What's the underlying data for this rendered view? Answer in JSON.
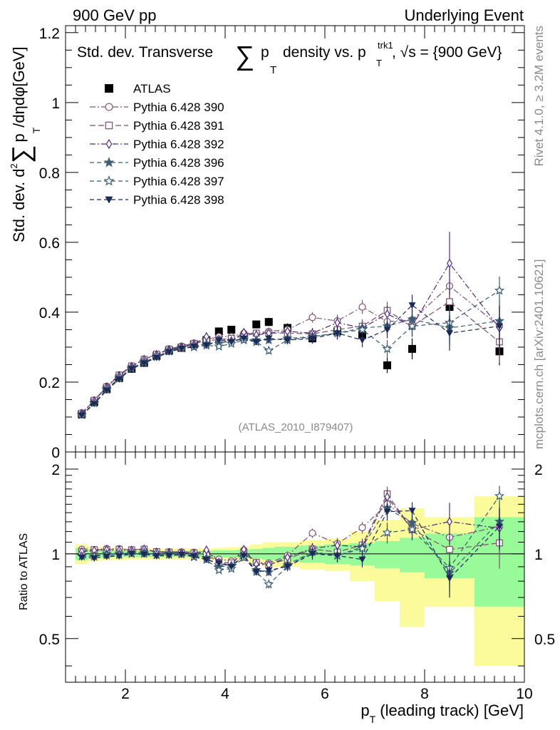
{
  "header": {
    "left": "900 GeV pp",
    "right": "Underlying Event"
  },
  "side_labels": {
    "rivet": "Rivet 4.1.0, ≥ 3.2M events",
    "mcplots": "mcplots.cern.ch [arXiv:2401.10621]"
  },
  "chart_data": [
    {
      "type": "scatter",
      "panel": "main",
      "title_parts": {
        "a": "Std. dev. Transverse",
        "sum": "∑",
        "p": "p",
        "T": "T",
        "b": "density vs. p",
        "trk1": "trk1",
        "c": ", √s = {900 GeV}"
      },
      "ylabel_parts": {
        "a": "Std. dev. d",
        "sup": "2",
        "sum": "∑",
        "b": "p",
        "T": "T",
        "c": "/dηdφ[GeV]"
      },
      "xlabel_parts": {
        "a": "p",
        "T": "T",
        "b": " (leading track) [GeV]"
      },
      "watermark": "(ATLAS_2010_I879407)",
      "xlim": [
        0.8,
        10.0
      ],
      "ylim": [
        0,
        1.22
      ],
      "yticks": [
        0,
        0.2,
        0.4,
        0.6,
        0.8,
        1,
        1.2
      ],
      "ytick_labels": [
        "0",
        "0.2",
        "0.4",
        "0.6",
        "0.8",
        "1",
        "1.2"
      ],
      "xticks": [
        2,
        4,
        6,
        8,
        10
      ],
      "xtick_labels": [
        "2",
        "4",
        "6",
        "8",
        "10"
      ],
      "x": [
        1.125,
        1.375,
        1.625,
        1.875,
        2.125,
        2.375,
        2.625,
        2.875,
        3.125,
        3.375,
        3.625,
        3.875,
        4.125,
        4.375,
        4.625,
        4.875,
        5.25,
        5.75,
        6.25,
        6.75,
        7.25,
        7.75,
        8.5,
        9.5
      ],
      "series": [
        {
          "name": "ATLAS",
          "marker": "square-filled",
          "color": "#000000",
          "values": [
            0.108,
            0.143,
            0.18,
            0.212,
            0.238,
            0.255,
            0.275,
            0.29,
            0.298,
            0.308,
            0.32,
            0.345,
            0.35,
            0.33,
            0.365,
            0.372,
            0.355,
            0.325,
            0.345,
            0.335,
            0.248,
            0.295,
            0.415,
            0.288
          ],
          "errors": [
            0.003,
            0.003,
            0.004,
            0.004,
            0.004,
            0.004,
            0.004,
            0.005,
            0.005,
            0.005,
            0.006,
            0.007,
            0.008,
            0.009,
            0.01,
            0.012,
            0.013,
            0.015,
            0.018,
            0.02,
            0.022,
            0.03,
            0.035,
            0.04
          ]
        },
        {
          "name": "Pythia 6.428 390",
          "marker": "circle-open",
          "color": "#7e5475",
          "values": [
            0.112,
            0.148,
            0.188,
            0.221,
            0.246,
            0.265,
            0.279,
            0.295,
            0.303,
            0.312,
            0.322,
            0.33,
            0.33,
            0.34,
            0.34,
            0.345,
            0.35,
            0.385,
            0.375,
            0.415,
            0.373,
            0.378,
            0.475,
            0.36
          ],
          "errors": [
            0.002,
            0.002,
            0.002,
            0.003,
            0.003,
            0.003,
            0.003,
            0.004,
            0.004,
            0.005,
            0.005,
            0.006,
            0.007,
            0.008,
            0.009,
            0.01,
            0.012,
            0.015,
            0.018,
            0.02,
            0.025,
            0.03,
            0.05,
            0.06
          ]
        },
        {
          "name": "Pythia 6.428 391",
          "marker": "square-open",
          "color": "#7e5069",
          "values": [
            0.11,
            0.148,
            0.186,
            0.22,
            0.246,
            0.265,
            0.28,
            0.294,
            0.3,
            0.31,
            0.318,
            0.322,
            0.325,
            0.332,
            0.34,
            0.34,
            0.34,
            0.338,
            0.35,
            0.36,
            0.405,
            0.36,
            0.43,
            0.315
          ],
          "errors": [
            0.002,
            0.002,
            0.002,
            0.003,
            0.003,
            0.003,
            0.003,
            0.004,
            0.004,
            0.005,
            0.005,
            0.006,
            0.007,
            0.008,
            0.009,
            0.01,
            0.012,
            0.015,
            0.018,
            0.02,
            0.025,
            0.03,
            0.05,
            0.06
          ]
        },
        {
          "name": "Pythia 6.428 392",
          "marker": "diamond-open",
          "color": "#4f2c7b",
          "values": [
            0.11,
            0.147,
            0.186,
            0.218,
            0.245,
            0.265,
            0.279,
            0.293,
            0.3,
            0.308,
            0.33,
            0.322,
            0.318,
            0.342,
            0.335,
            0.34,
            0.345,
            0.34,
            0.37,
            0.355,
            0.395,
            0.36,
            0.54,
            0.355
          ],
          "errors": [
            0.002,
            0.002,
            0.002,
            0.003,
            0.003,
            0.003,
            0.003,
            0.004,
            0.004,
            0.005,
            0.005,
            0.006,
            0.007,
            0.008,
            0.009,
            0.01,
            0.012,
            0.015,
            0.018,
            0.02,
            0.025,
            0.03,
            0.09,
            0.06
          ]
        },
        {
          "name": "Pythia 6.428 396",
          "marker": "star-filled",
          "color": "#3f5f77",
          "values": [
            0.106,
            0.14,
            0.18,
            0.212,
            0.24,
            0.258,
            0.272,
            0.29,
            0.298,
            0.302,
            0.31,
            0.31,
            0.318,
            0.325,
            0.32,
            0.32,
            0.325,
            0.33,
            0.34,
            0.355,
            0.36,
            0.38,
            0.355,
            0.375
          ],
          "errors": [
            0.002,
            0.002,
            0.002,
            0.003,
            0.003,
            0.003,
            0.003,
            0.004,
            0.004,
            0.005,
            0.005,
            0.006,
            0.007,
            0.008,
            0.009,
            0.01,
            0.012,
            0.015,
            0.018,
            0.02,
            0.025,
            0.03,
            0.05,
            0.06
          ]
        },
        {
          "name": "Pythia 6.428 397",
          "marker": "star-open",
          "color": "#375a70",
          "values": [
            0.106,
            0.14,
            0.178,
            0.21,
            0.238,
            0.255,
            0.273,
            0.288,
            0.297,
            0.3,
            0.305,
            0.302,
            0.31,
            0.32,
            0.315,
            0.29,
            0.32,
            0.33,
            0.34,
            0.35,
            0.295,
            0.36,
            0.37,
            0.462
          ],
          "errors": [
            0.002,
            0.002,
            0.002,
            0.003,
            0.003,
            0.003,
            0.003,
            0.004,
            0.004,
            0.005,
            0.005,
            0.006,
            0.007,
            0.008,
            0.009,
            0.01,
            0.012,
            0.015,
            0.018,
            0.02,
            0.025,
            0.03,
            0.05,
            0.04
          ]
        },
        {
          "name": "Pythia 6.428 398",
          "marker": "triangle-down-filled",
          "color": "#1c2b55",
          "values": [
            0.105,
            0.138,
            0.176,
            0.208,
            0.238,
            0.254,
            0.27,
            0.286,
            0.296,
            0.302,
            0.305,
            0.32,
            0.315,
            0.325,
            0.315,
            0.325,
            0.32,
            0.325,
            0.34,
            0.32,
            0.35,
            0.42,
            0.34,
            0.36
          ],
          "errors": [
            0.002,
            0.002,
            0.002,
            0.003,
            0.003,
            0.003,
            0.003,
            0.004,
            0.004,
            0.005,
            0.005,
            0.006,
            0.007,
            0.008,
            0.009,
            0.01,
            0.012,
            0.015,
            0.018,
            0.02,
            0.025,
            0.03,
            0.05,
            0.06
          ]
        }
      ]
    },
    {
      "type": "scatter",
      "panel": "ratio",
      "ylabel": "Ratio to ATLAS",
      "xlim": [
        0.8,
        10.0
      ],
      "ylim": [
        0.35,
        2.3
      ],
      "ytick_labels": [
        "0.5",
        "1",
        "2"
      ],
      "yticks": [
        0.5,
        1,
        2
      ],
      "bin_edges": [
        1.0,
        1.25,
        1.5,
        1.75,
        2.0,
        2.25,
        2.5,
        2.75,
        3.0,
        3.25,
        3.5,
        3.75,
        4.0,
        4.25,
        4.5,
        4.75,
        5.0,
        5.5,
        6.0,
        6.5,
        7.0,
        7.5,
        8.0,
        9.0,
        10.0
      ],
      "band_stat": [
        0.05,
        0.03,
        0.03,
        0.025,
        0.025,
        0.025,
        0.025,
        0.025,
        0.025,
        0.025,
        0.025,
        0.03,
        0.03,
        0.035,
        0.04,
        0.05,
        0.06,
        0.07,
        0.08,
        0.09,
        0.11,
        0.14,
        0.18,
        0.35
      ],
      "band_total": [
        0.08,
        0.06,
        0.05,
        0.05,
        0.045,
        0.045,
        0.045,
        0.045,
        0.045,
        0.045,
        0.045,
        0.05,
        0.055,
        0.06,
        0.08,
        0.1,
        0.1,
        0.12,
        0.13,
        0.2,
        0.32,
        0.45,
        0.35,
        0.6
      ],
      "band_colors": {
        "stat": "#98fa98",
        "total": "#fbfb9c"
      },
      "reference_line": 1
    }
  ]
}
